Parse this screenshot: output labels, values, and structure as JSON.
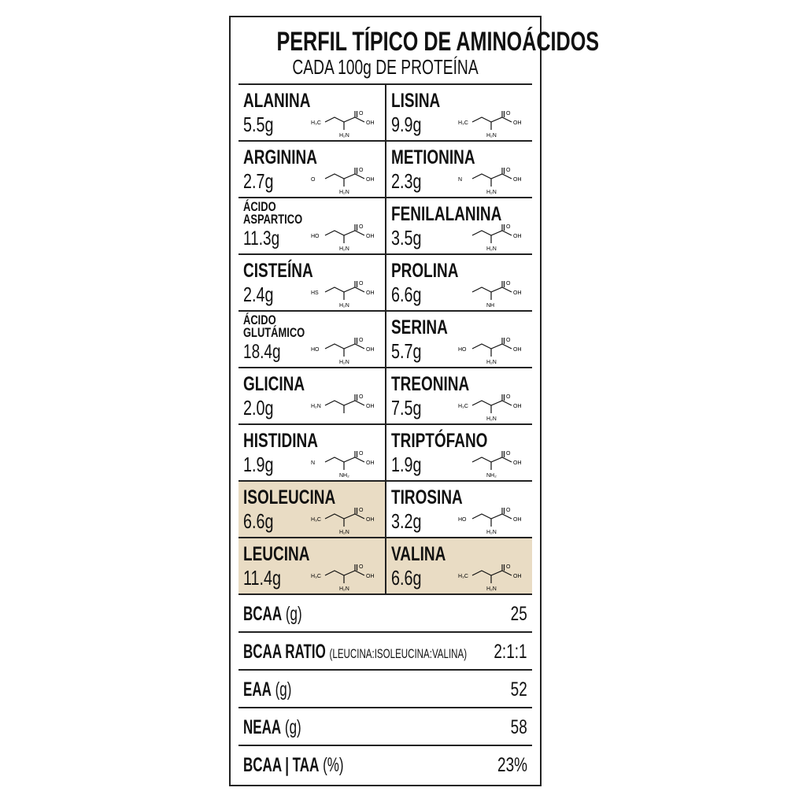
{
  "header": {
    "title": "PERFIL TÍPICO DE AMINOÁCIDOS",
    "subtitle": "CADA 100g DE PROTEÍNA"
  },
  "highlight_color": "#e9dcc4",
  "rows": [
    [
      {
        "name": "ALANINA",
        "value": "5.5g",
        "left": "H₃C",
        "right": "OH",
        "bottom": "H₂N"
      },
      {
        "name": "LISINA",
        "value": "9.9g",
        "left": "H₃C",
        "right": "OH",
        "bottom": "H₂N"
      }
    ],
    [
      {
        "name": "ARGININA",
        "value": "2.7g",
        "left": "O",
        "right": "OH",
        "bottom": "H₂N"
      },
      {
        "name": "METIONINA",
        "value": "2.3g",
        "left": "N",
        "right": "OH",
        "bottom": "H₂N"
      }
    ],
    [
      {
        "name": "ÁCIDO\nASPARTICO",
        "value": "11.3g",
        "left": "HO",
        "right": "OH",
        "bottom": "H₂N"
      },
      {
        "name": "FENILALANINA",
        "value": "3.5g",
        "left": "",
        "right": "OH",
        "bottom": "H₂N"
      }
    ],
    [
      {
        "name": "CISTEÍNA",
        "value": "2.4g",
        "left": "HS",
        "right": "OH",
        "bottom": "H₂N"
      },
      {
        "name": "PROLINA",
        "value": "6.6g",
        "left": "",
        "right": "OH",
        "bottom": "NH"
      }
    ],
    [
      {
        "name": "ÁCIDO\nGLUTÁMICO",
        "value": "18.4g",
        "left": "HO",
        "right": "OH",
        "bottom": "H₂N"
      },
      {
        "name": "SERINA",
        "value": "5.7g",
        "left": "HO",
        "right": "OH",
        "bottom": "H₂N"
      }
    ],
    [
      {
        "name": "GLICINA",
        "value": "2.0g",
        "left": "H₂N",
        "right": "OH",
        "bottom": ""
      },
      {
        "name": "TREONINA",
        "value": "7.5g",
        "left": "H₃C",
        "right": "OH",
        "bottom": "H₂N"
      }
    ],
    [
      {
        "name": "HISTIDINA",
        "value": "1.9g",
        "left": "N",
        "right": "OH",
        "bottom": "NH₂"
      },
      {
        "name": "TRIPTÓFANO",
        "value": "1.9g",
        "left": "",
        "right": "OH",
        "bottom": "NH₂"
      }
    ],
    [
      {
        "name": "ISOLEUCINA",
        "value": "6.6g",
        "left": "H₃C",
        "right": "OH",
        "bottom": "H₂N",
        "highlight": true
      },
      {
        "name": "TIROSINA",
        "value": "3.2g",
        "left": "HO",
        "right": "OH",
        "bottom": "H₂N"
      }
    ],
    [
      {
        "name": "LEUCINA",
        "value": "11.4g",
        "left": "H₃C",
        "right": "OH",
        "bottom": "H₂N",
        "highlight": true
      },
      {
        "name": "VALINA",
        "value": "6.6g",
        "left": "H₃C",
        "right": "OH",
        "bottom": "H₂N",
        "highlight": true
      }
    ]
  ],
  "summary": [
    {
      "label": "BCAA",
      "unit": "(g)",
      "value": "25"
    },
    {
      "label": "BCAA RATIO",
      "unit": "(LEUCINA:ISOLEUCINA:VALINA)",
      "value": "2:1:1"
    },
    {
      "label": "EAA",
      "unit": "(g)",
      "value": "52"
    },
    {
      "label": "NEAA",
      "unit": "(g)",
      "value": "58"
    },
    {
      "label": "BCAA | TAA",
      "unit": "(%)",
      "value": "23%"
    }
  ]
}
